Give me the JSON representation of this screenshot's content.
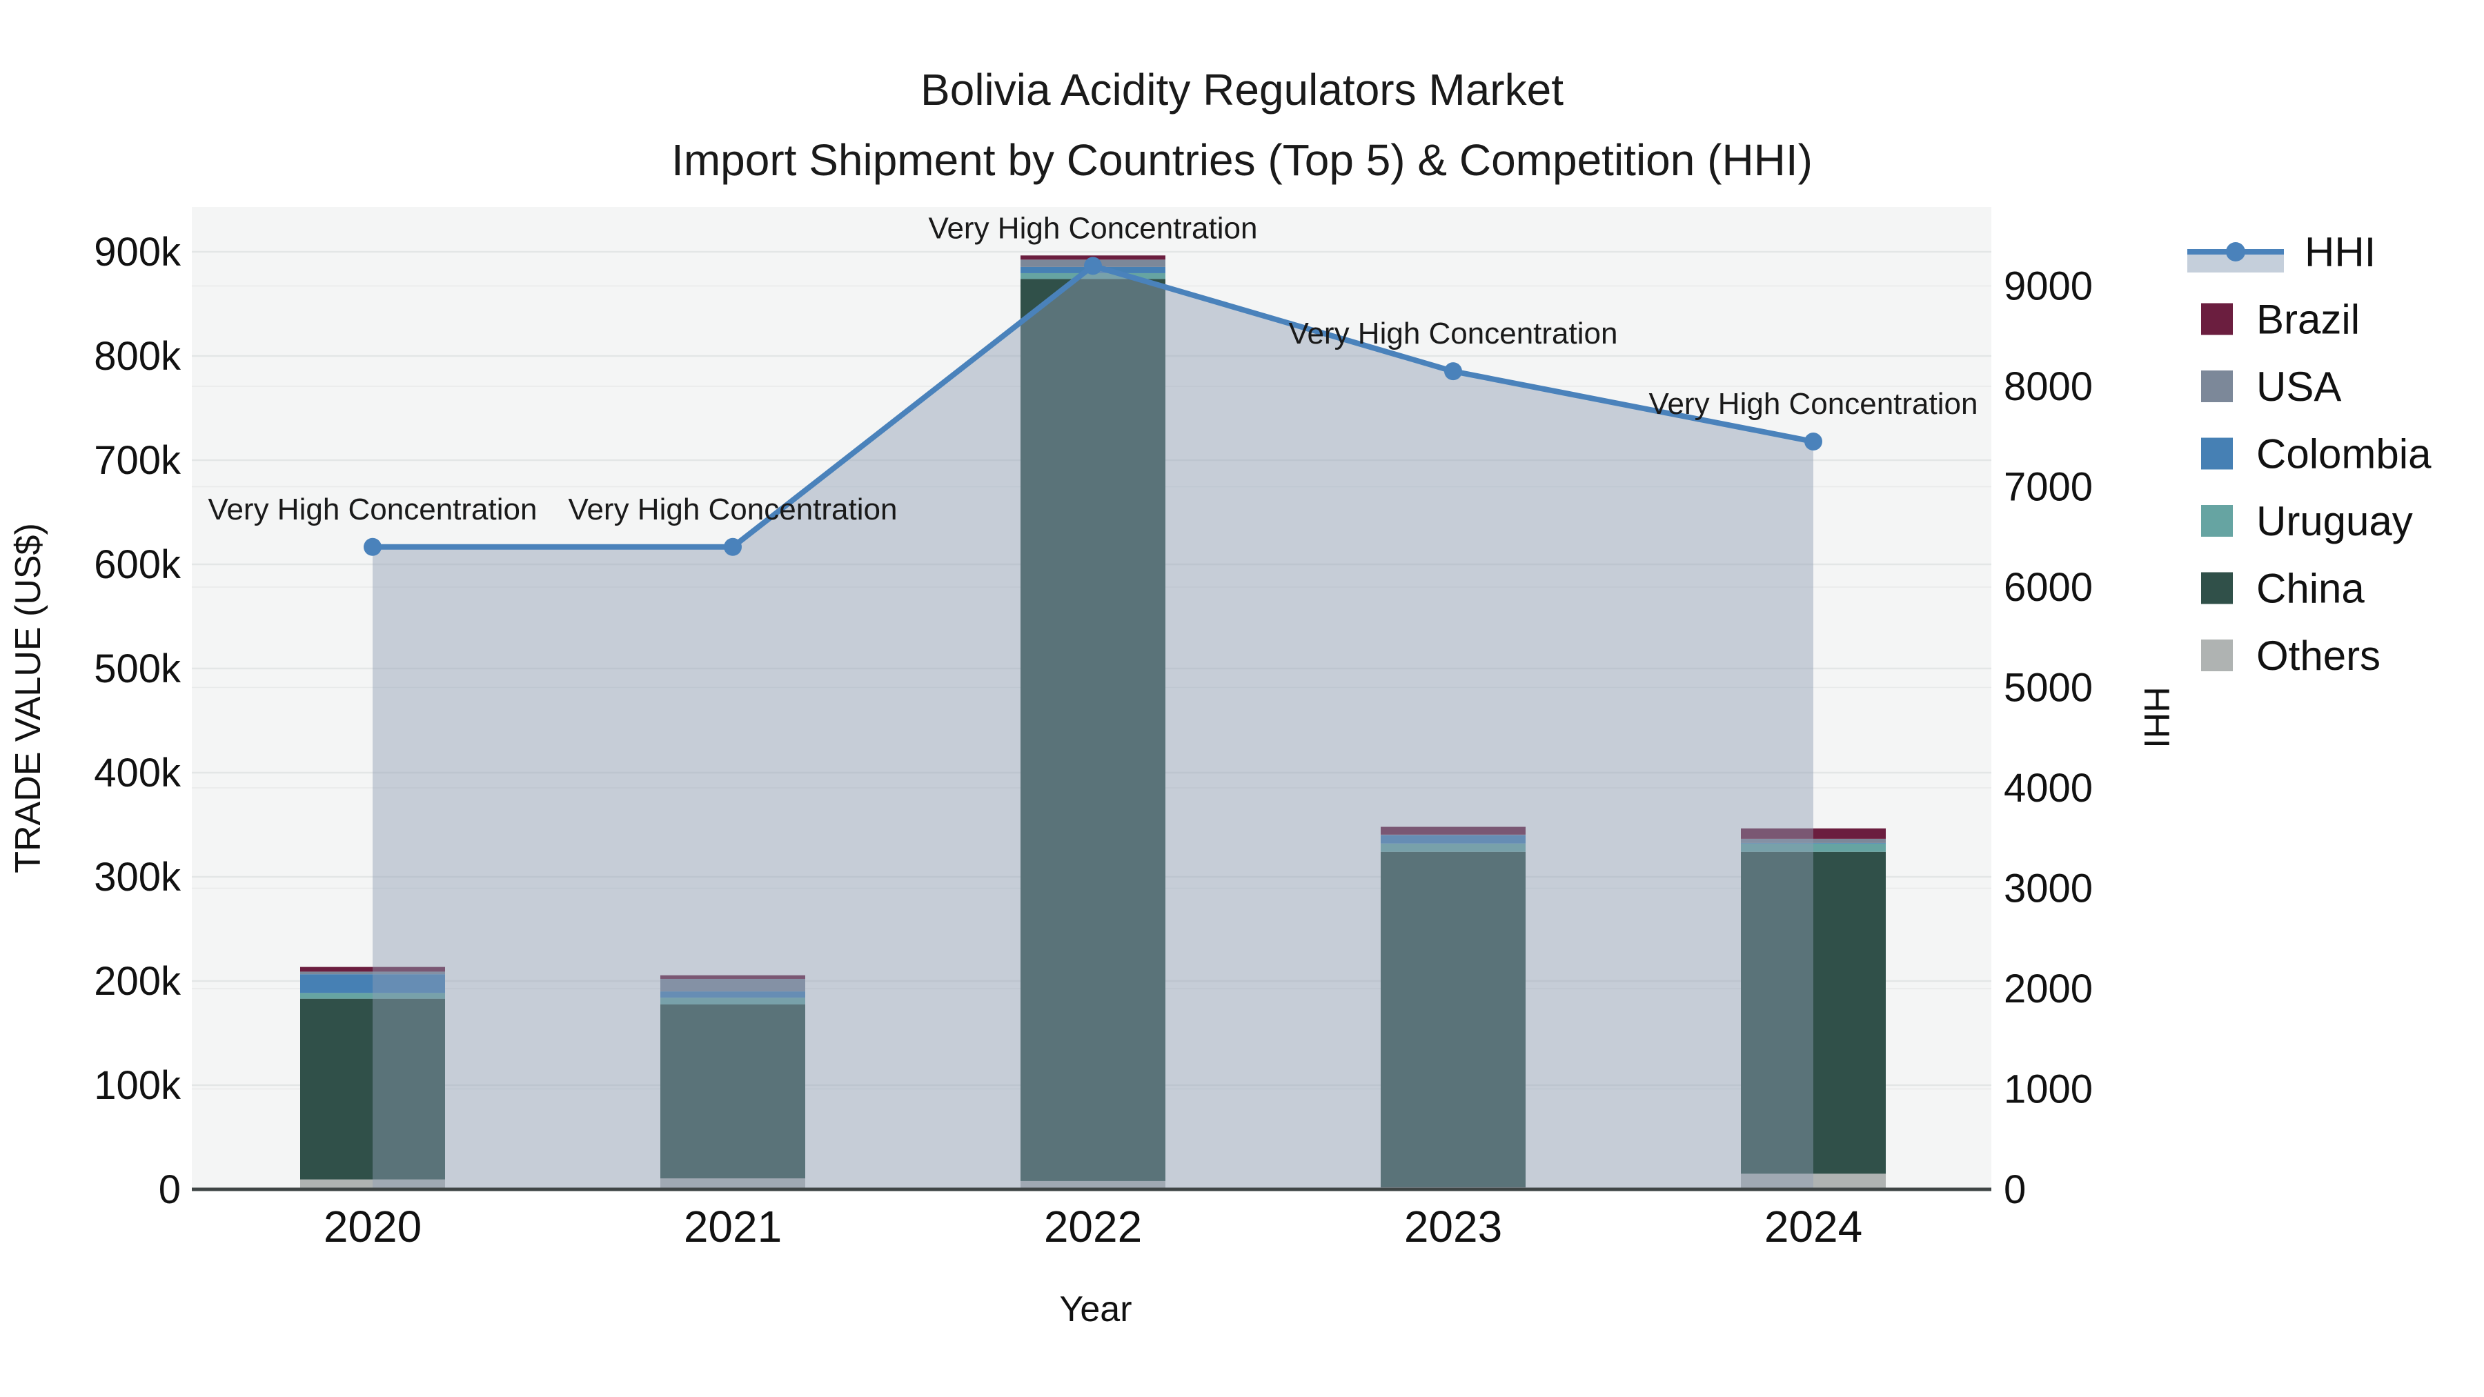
{
  "title": {
    "line1": "Bolivia Acidity Regulators Market",
    "line2": "Import Shipment by Countries (Top 5) & Competition (HHI)"
  },
  "chart_data": {
    "type": "combo-stacked-bar-line",
    "categories": [
      "2020",
      "2021",
      "2022",
      "2023",
      "2024"
    ],
    "values_unit": "US$ thousands",
    "series": [
      {
        "name": "Brazil",
        "color": "#6B1E3F",
        "values": [
          4.5,
          3.5,
          4,
          7.5,
          10
        ]
      },
      {
        "name": "USA",
        "color": "#7C8899",
        "values": [
          2.5,
          12,
          7,
          0.5,
          4
        ]
      },
      {
        "name": "Colombia",
        "color": "#4680B4",
        "values": [
          18,
          6,
          6,
          8,
          0.5
        ]
      },
      {
        "name": "Uruguay",
        "color": "#66A4A2",
        "values": [
          5.5,
          6.5,
          5.5,
          8,
          8
        ]
      },
      {
        "name": "China",
        "color": "#305049",
        "values": [
          173.5,
          167,
          866,
          322,
          309
        ]
      },
      {
        "name": "Others",
        "color": "#AFB3B2",
        "values": [
          9.5,
          10.5,
          8,
          2,
          15
        ]
      }
    ],
    "stack_order_bottom_to_top": [
      "Others",
      "China",
      "Uruguay",
      "Colombia",
      "USA",
      "Brazil"
    ],
    "line_series": {
      "name": "HHI",
      "color": "#4A82BB",
      "area_fill": "rgba(141,157,180,0.45)",
      "legend_band_fill": "#C5CFDB",
      "values": [
        6400,
        6400,
        9200,
        8150,
        7450
      ],
      "annotation": "Very High Concentration"
    },
    "axes": {
      "left": {
        "title": "TRADE VALUE (US$)",
        "ticks": [
          {
            "v": 0,
            "label": "0"
          },
          {
            "v": 100,
            "label": "100k"
          },
          {
            "v": 200,
            "label": "200k"
          },
          {
            "v": 300,
            "label": "300k"
          },
          {
            "v": 400,
            "label": "400k"
          },
          {
            "v": 500,
            "label": "500k"
          },
          {
            "v": 600,
            "label": "600k"
          },
          {
            "v": 700,
            "label": "700k"
          },
          {
            "v": 800,
            "label": "800k"
          },
          {
            "v": 900,
            "label": "900k"
          }
        ],
        "range": [
          0,
          946
        ]
      },
      "right": {
        "title": "HHI",
        "ticks": [
          {
            "v": 0,
            "label": "0"
          },
          {
            "v": 1000,
            "label": "1000"
          },
          {
            "v": 2000,
            "label": "2000"
          },
          {
            "v": 3000,
            "label": "3000"
          },
          {
            "v": 4000,
            "label": "4000"
          },
          {
            "v": 5000,
            "label": "5000"
          },
          {
            "v": 6000,
            "label": "6000"
          },
          {
            "v": 7000,
            "label": "7000"
          },
          {
            "v": 8000,
            "label": "8000"
          },
          {
            "v": 9000,
            "label": "9000"
          }
        ],
        "range": [
          0,
          9788
        ]
      },
      "x": {
        "title": "Year"
      }
    },
    "legend": {
      "entries": [
        "HHI",
        "Brazil",
        "USA",
        "Colombia",
        "Uruguay",
        "China",
        "Others"
      ],
      "position": "right"
    },
    "plot_background": "#f4f5f5",
    "gridline_color": "#e3e6e6",
    "axis_line_color": "#3f4545"
  }
}
